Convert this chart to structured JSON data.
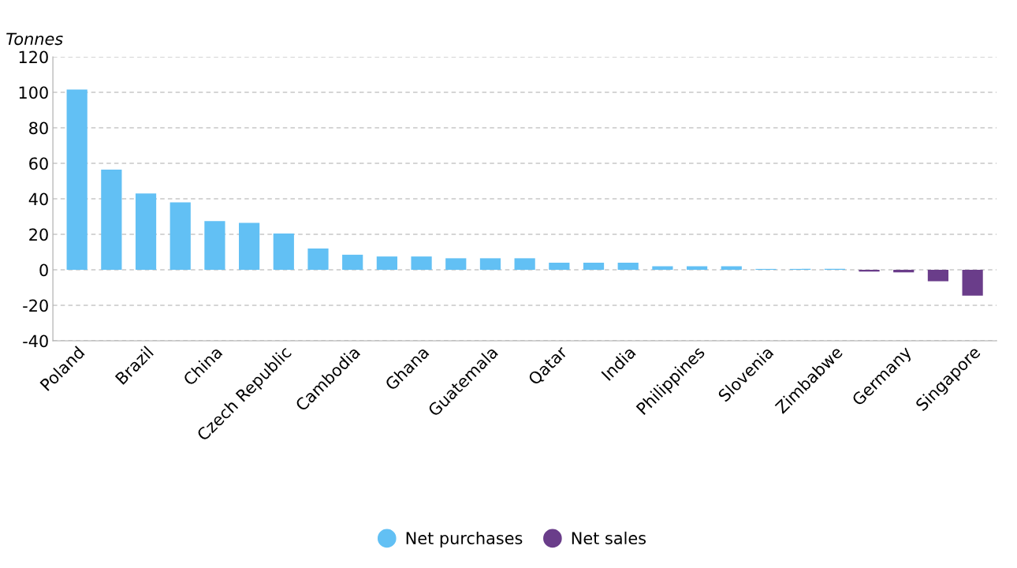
{
  "chart_data": {
    "type": "bar",
    "ylabel": "Tonnes",
    "categories": [
      "Poland",
      null,
      "Brazil",
      null,
      "China",
      null,
      "Czech Republic",
      null,
      "Cambodia",
      null,
      "Ghana",
      null,
      "Guatemala",
      null,
      "Qatar",
      null,
      "India",
      null,
      "Philippines",
      null,
      "Slovenia",
      null,
      "Zimbabwe",
      null,
      "Germany",
      null,
      "Singapore"
    ],
    "series": [
      {
        "name": "Net purchases",
        "color": "#62c0f4",
        "values": [
          101.5,
          56.5,
          43,
          38,
          27.5,
          26.5,
          20.5,
          12,
          8.5,
          7.5,
          7.5,
          6.5,
          6.5,
          6.5,
          4,
          4,
          4,
          2,
          2,
          2,
          0.5,
          0.5,
          0.5,
          null,
          null,
          null,
          null
        ]
      },
      {
        "name": "Net sales",
        "color": "#6a3d8a",
        "values": [
          null,
          null,
          null,
          null,
          null,
          null,
          null,
          null,
          null,
          null,
          null,
          null,
          null,
          null,
          null,
          null,
          null,
          null,
          null,
          null,
          null,
          null,
          null,
          -1,
          -1.5,
          -6.5,
          -14.5
        ]
      }
    ],
    "ylim": [
      -40,
      120
    ],
    "yticks": [
      -40,
      -20,
      0,
      20,
      40,
      60,
      80,
      100,
      120
    ],
    "grid": "y",
    "legend": "bottom"
  }
}
